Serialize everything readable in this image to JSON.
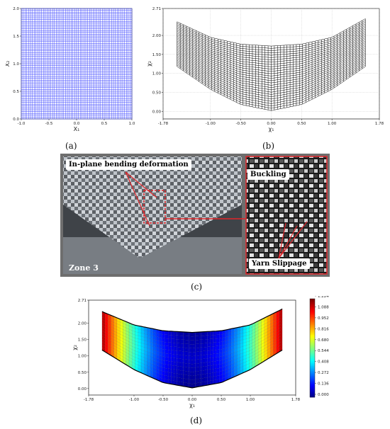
{
  "figure": {
    "captions": {
      "a": "(a)",
      "b": "(b)",
      "c": "(c)",
      "d": "(d)"
    }
  },
  "panel_a": {
    "xlabel": "X₁",
    "ylabel": "X₂",
    "mesh_color": "#2b35ff"
  },
  "panel_b": {
    "xlabel": "χ₁",
    "ylabel": "χ₂",
    "mesh_color": "#000000"
  },
  "panel_c": {
    "labels": {
      "in_plane": "In-plane bending deformation",
      "buckling": "Buckling",
      "yarn_slippage": "Yarn Slippage",
      "zone": "Zone 3"
    },
    "accent_color": "#e0262b"
  },
  "panel_d": {
    "xlabel": "χ₁",
    "ylabel": "χ₂",
    "colorbar_ticks": [
      "1.224",
      "1.088",
      "0.952",
      "0.816",
      "0.680",
      "0.544",
      "0.408",
      "0.272",
      "0.136",
      "0.000"
    ],
    "colormap": [
      "#00007f",
      "#0000ff",
      "#007fff",
      "#00ffff",
      "#7fff7f",
      "#ffff00",
      "#ff7f00",
      "#ff0000",
      "#7f0000"
    ]
  },
  "chart_data": [
    {
      "type": "scatter",
      "panel": "a",
      "description_kind": "reference mesh",
      "xlabel": "X₁",
      "ylabel": "X₂",
      "xlim": [
        -1.0,
        1.0
      ],
      "ylim": [
        0.0,
        2.0
      ],
      "x_ticks": [
        "-1.0",
        "-0.5",
        "0.0",
        "0.5",
        "1.0"
      ],
      "y_ticks": [
        "0.0",
        "0.5",
        "1.0",
        "1.5",
        "2.0"
      ],
      "grid_lines": {
        "x": 60,
        "y": 60
      },
      "grid": true
    },
    {
      "type": "scatter",
      "panel": "b",
      "xlabel": "χ₁",
      "ylabel": "χ₂",
      "xlim": [
        -1.78,
        1.78
      ],
      "ylim": [
        -0.2,
        2.71
      ],
      "x_ticks": [
        "-1.78",
        "-1.00",
        "-0.50",
        "0.00",
        "0.50",
        "1.00",
        "1.78"
      ],
      "y_ticks": [
        "0.00",
        "0.50",
        "1.00",
        "1.50",
        "2.00",
        "2.71"
      ],
      "bottom_boundary": [
        [
          -1.55,
          1.18
        ],
        [
          -1.0,
          0.58
        ],
        [
          -0.5,
          0.18
        ],
        [
          0.0,
          0.02
        ],
        [
          0.5,
          0.18
        ],
        [
          1.0,
          0.58
        ],
        [
          1.55,
          1.18
        ]
      ],
      "top_boundary": [
        [
          -1.55,
          2.36
        ],
        [
          -1.0,
          1.95
        ],
        [
          -0.5,
          1.77
        ],
        [
          0.0,
          1.72
        ],
        [
          0.5,
          1.77
        ],
        [
          1.0,
          1.95
        ],
        [
          1.55,
          2.44
        ]
      ],
      "grid": true
    },
    {
      "type": "heatmap",
      "panel": "d",
      "xlabel": "χ₁",
      "ylabel": "χ₂",
      "xlim": [
        -1.78,
        1.78
      ],
      "ylim": [
        -0.2,
        2.71
      ],
      "x_ticks": [
        "-1.78",
        "-1.00",
        "-0.50",
        "0.00",
        "0.50",
        "1.00",
        "1.78"
      ],
      "y_ticks": [
        "0.00",
        "0.50",
        "1.00",
        "1.50",
        "2.00",
        "2.71"
      ],
      "colorbar": {
        "min": 0.0,
        "max": 1.224,
        "ticks": [
          1.224,
          1.088,
          0.952,
          0.816,
          0.68,
          0.544,
          0.408,
          0.272,
          0.136,
          0.0
        ]
      },
      "bottom_boundary": [
        [
          -1.55,
          1.18
        ],
        [
          -1.0,
          0.58
        ],
        [
          -0.5,
          0.18
        ],
        [
          0.0,
          0.02
        ],
        [
          0.5,
          0.18
        ],
        [
          1.0,
          0.58
        ],
        [
          1.55,
          1.18
        ]
      ],
      "top_boundary": [
        [
          -1.55,
          2.36
        ],
        [
          -1.0,
          1.95
        ],
        [
          -0.5,
          1.77
        ],
        [
          0.0,
          1.72
        ],
        [
          0.5,
          1.77
        ],
        [
          1.0,
          1.95
        ],
        [
          1.55,
          2.44
        ]
      ],
      "field_trend": "value increases with |χ₁|, ~0 at centre, ~1.22 at the lateral edges"
    }
  ]
}
